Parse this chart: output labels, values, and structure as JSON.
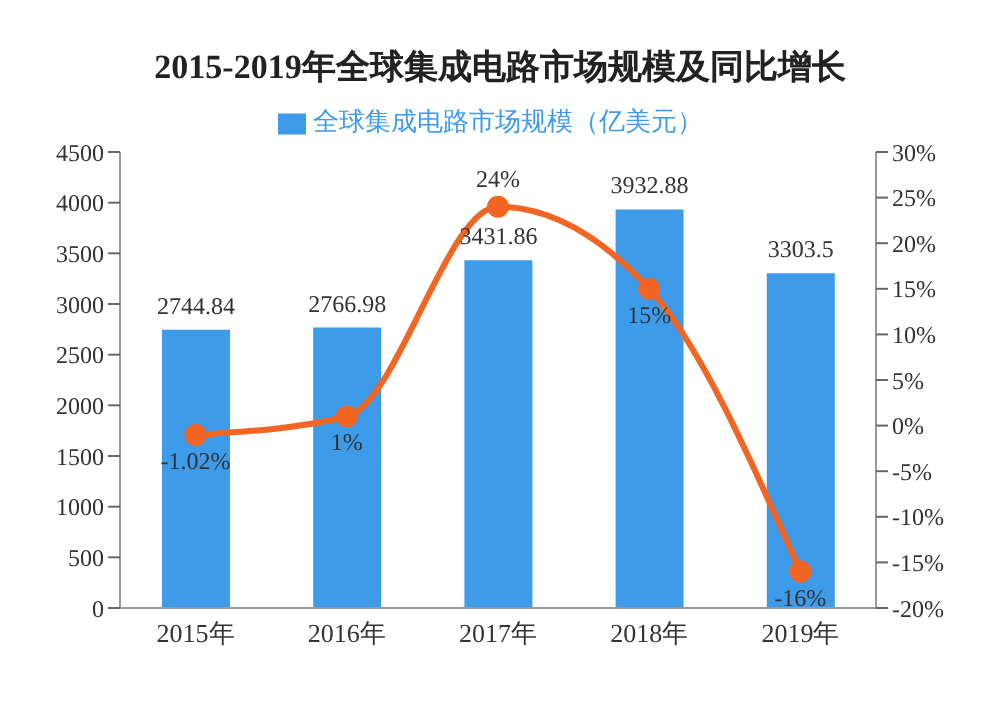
{
  "chart_data": {
    "type": "bar",
    "title": "2015-2019年全球集成电路市场规模及同比增长",
    "categories": [
      "2015年",
      "2016年",
      "2017年",
      "2018年",
      "2019年"
    ],
    "series": [
      {
        "name": "全球集成电路市场规模（亿美元）",
        "color": "#3d9be9",
        "values": [
          2744.84,
          2766.98,
          3431.86,
          3932.88,
          3303.5
        ],
        "value_labels": [
          "2744.84",
          "2766.98",
          "3431.86",
          "3932.88",
          "3303.5"
        ]
      },
      {
        "type": "line",
        "axis": "y2",
        "color": "#f26522",
        "values": [
          -1.02,
          1,
          24,
          15,
          -16
        ],
        "value_labels": [
          "-1.02%",
          "1%",
          "24%",
          "15%",
          "-16%"
        ]
      }
    ],
    "ylim": [
      0,
      4500
    ],
    "yticks": [
      0,
      500,
      1000,
      1500,
      2000,
      2500,
      3000,
      3500,
      4000,
      4500
    ],
    "y2lim": [
      -20,
      30
    ],
    "y2ticks": [
      {
        "value": -20,
        "label": "-20%"
      },
      {
        "value": -15,
        "label": "-15%"
      },
      {
        "value": -10,
        "label": "-10%"
      },
      {
        "value": -5,
        "label": "-5%"
      },
      {
        "value": 0,
        "label": "0%"
      },
      {
        "value": 5,
        "label": "5%"
      },
      {
        "value": 10,
        "label": "10%"
      },
      {
        "value": 15,
        "label": "15%"
      },
      {
        "value": 20,
        "label": "20%"
      },
      {
        "value": 25,
        "label": "25%"
      },
      {
        "value": 30,
        "label": "30%"
      }
    ],
    "legend": "top",
    "marker": "circle",
    "grid": false
  }
}
